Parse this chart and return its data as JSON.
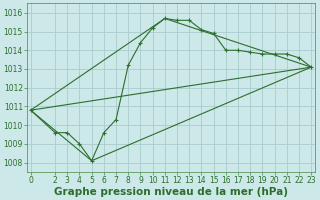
{
  "title": "Graphe pression niveau de la mer (hPa)",
  "bg_color": "#cce8e8",
  "grid_color": "#aacccc",
  "line_color": "#2d6e2d",
  "line1_x": [
    0,
    2,
    3,
    4,
    5,
    6,
    7,
    8,
    9,
    10,
    11,
    12,
    13,
    14,
    15,
    16,
    17,
    18,
    19,
    20,
    21,
    22,
    23
  ],
  "line1_y": [
    1010.8,
    1009.6,
    1009.6,
    1009.0,
    1008.1,
    1009.6,
    1010.3,
    1013.2,
    1014.4,
    1015.2,
    1015.7,
    1015.6,
    1015.6,
    1015.1,
    1014.9,
    1014.0,
    1014.0,
    1013.9,
    1013.8,
    1013.8,
    1013.8,
    1013.6,
    1013.1
  ],
  "line2_x": [
    0,
    23
  ],
  "line2_y": [
    1010.8,
    1013.1
  ],
  "line3_x": [
    0,
    5,
    23
  ],
  "line3_y": [
    1010.8,
    1008.1,
    1013.1
  ],
  "line4_x": [
    0,
    11,
    23
  ],
  "line4_y": [
    1010.8,
    1015.7,
    1013.1
  ],
  "ylim": [
    1007.5,
    1016.5
  ],
  "yticks": [
    1008,
    1009,
    1010,
    1011,
    1012,
    1013,
    1014,
    1015,
    1016
  ],
  "xticks": [
    0,
    2,
    3,
    4,
    5,
    6,
    7,
    8,
    9,
    10,
    11,
    12,
    13,
    14,
    15,
    16,
    17,
    18,
    19,
    20,
    21,
    22,
    23
  ],
  "xlim": [
    -0.3,
    23.3
  ],
  "xlabel_fontsize": 7.5,
  "tick_fontsize": 5.5
}
